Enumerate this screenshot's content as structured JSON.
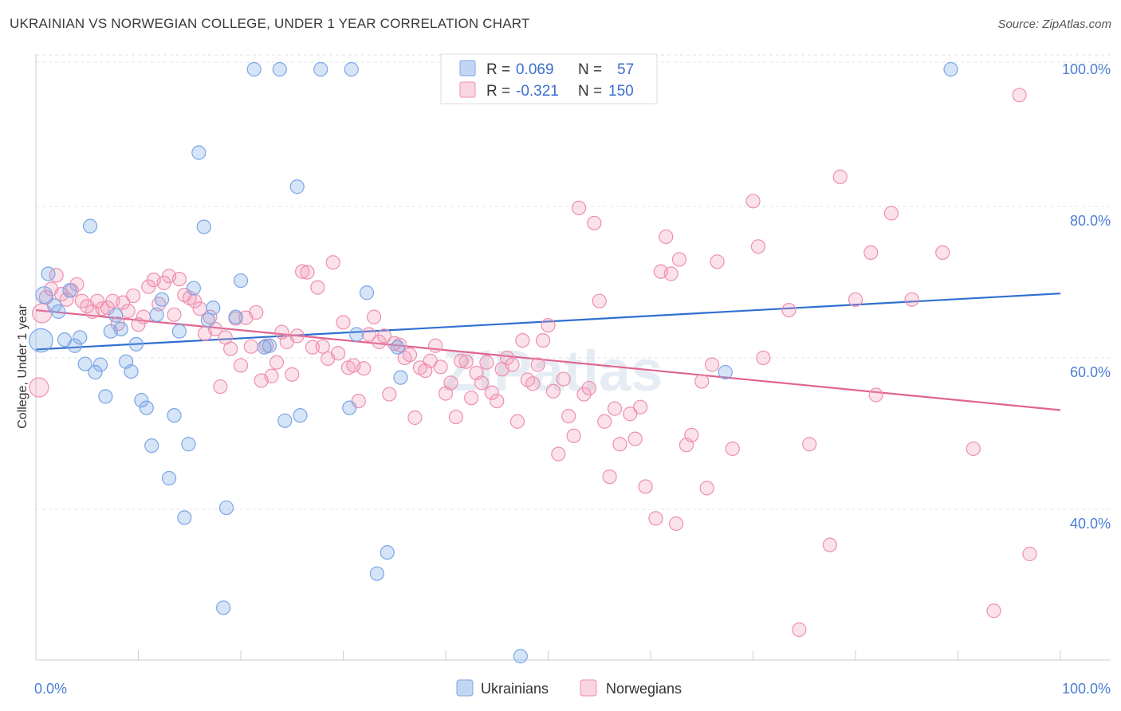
{
  "header": {
    "title": "UKRAINIAN VS NORWEGIAN COLLEGE, UNDER 1 YEAR CORRELATION CHART",
    "source": "Source: ZipAtlas.com"
  },
  "watermark": "ZIPatlas",
  "colors": {
    "ukrainians": "#7aa6e6",
    "ukrainians_fill": "rgba(120,165,230,0.30)",
    "ukrainians_line": "#2f6fd0",
    "norwegians": "#ee8fae",
    "norwegians_fill": "rgba(240,150,180,0.28)",
    "norwegians_line": "#e0648f",
    "tick": "#4a7fd4",
    "grid": "#dde3ea"
  },
  "legend_top": {
    "rows": [
      {
        "r_label": "R =",
        "r_value": "0.069",
        "n_label": "N =",
        "n_value": "57"
      },
      {
        "r_label": "R =",
        "r_value": "-0.321",
        "n_label": "N =",
        "n_value": "150"
      }
    ]
  },
  "legend_bottom": [
    "Ukrainians",
    "Norwegians"
  ],
  "chart_data": {
    "type": "scatter",
    "title": "UKRAINIAN VS NORWEGIAN COLLEGE, UNDER 1 YEAR CORRELATION CHART",
    "xlabel": "",
    "ylabel": "College, Under 1 year",
    "xlim": [
      0,
      100
    ],
    "ylim": [
      22,
      102
    ],
    "x_ticks": [
      "0.0%",
      "100.0%"
    ],
    "y_ticks": [
      {
        "value": 100,
        "label": "100.0%"
      },
      {
        "value": 80,
        "label": "80.0%"
      },
      {
        "value": 60,
        "label": "60.0%"
      },
      {
        "value": 40,
        "label": "40.0%"
      }
    ],
    "grid": true,
    "legend": "top-center",
    "series": [
      {
        "name": "Ukrainians",
        "trend": {
          "x": [
            0,
            100
          ],
          "y": [
            63.0,
            70.4
          ]
        },
        "points": [
          [
            0.5,
            64.2,
            3
          ],
          [
            0.8,
            70.2,
            1.5
          ],
          [
            1.2,
            73.0,
            1
          ],
          [
            1.8,
            68.8,
            1
          ],
          [
            2.2,
            68.0,
            1
          ],
          [
            2.8,
            64.3,
            1
          ],
          [
            3.3,
            70.8,
            1
          ],
          [
            3.8,
            63.5,
            1
          ],
          [
            4.3,
            64.6,
            1
          ],
          [
            4.8,
            61.1,
            1
          ],
          [
            5.3,
            79.3,
            1
          ],
          [
            5.8,
            60.0,
            1
          ],
          [
            6.3,
            61.0,
            1
          ],
          [
            6.8,
            56.8,
            1
          ],
          [
            7.3,
            65.4,
            1
          ],
          [
            7.8,
            67.5,
            1
          ],
          [
            8.3,
            65.7,
            1
          ],
          [
            8.8,
            61.4,
            1
          ],
          [
            9.3,
            60.1,
            1
          ],
          [
            9.8,
            63.7,
            1
          ],
          [
            10.3,
            56.3,
            1
          ],
          [
            10.8,
            55.3,
            1
          ],
          [
            11.3,
            50.3,
            1
          ],
          [
            11.8,
            67.6,
            1
          ],
          [
            12.3,
            69.6,
            1
          ],
          [
            13.0,
            46.0,
            1
          ],
          [
            13.5,
            54.3,
            1
          ],
          [
            14.0,
            65.4,
            1
          ],
          [
            14.5,
            40.8,
            1
          ],
          [
            14.9,
            50.5,
            1
          ],
          [
            15.4,
            71.1,
            1
          ],
          [
            15.9,
            89.0,
            1
          ],
          [
            16.4,
            79.2,
            1
          ],
          [
            16.8,
            66.9,
            1
          ],
          [
            17.3,
            68.5,
            1
          ],
          [
            18.3,
            28.9,
            1
          ],
          [
            18.6,
            42.1,
            1
          ],
          [
            19.5,
            67.3,
            1
          ],
          [
            20.0,
            72.1,
            1
          ],
          [
            21.3,
            100.0,
            1
          ],
          [
            22.3,
            63.3,
            1
          ],
          [
            22.8,
            63.5,
            1
          ],
          [
            23.8,
            100.0,
            1
          ],
          [
            24.3,
            53.6,
            1
          ],
          [
            25.5,
            84.5,
            1
          ],
          [
            25.8,
            54.3,
            1
          ],
          [
            27.8,
            100.0,
            1
          ],
          [
            30.8,
            100.0,
            1
          ],
          [
            30.6,
            55.3,
            1
          ],
          [
            31.3,
            65.0,
            1
          ],
          [
            32.3,
            70.5,
            1
          ],
          [
            33.3,
            33.4,
            1
          ],
          [
            34.3,
            36.2,
            1
          ],
          [
            35.3,
            63.3,
            1
          ],
          [
            35.6,
            59.3,
            1
          ],
          [
            47.3,
            22.5,
            1
          ],
          [
            67.3,
            60.0,
            1
          ],
          [
            89.3,
            100.0,
            1
          ]
        ]
      },
      {
        "name": "Norwegians",
        "trend": {
          "x": [
            0,
            100
          ],
          "y": [
            68.2,
            55.0
          ]
        },
        "points": [
          [
            0.3,
            58.0,
            2
          ],
          [
            0.6,
            67.8,
            2
          ],
          [
            1.0,
            69.9,
            1
          ],
          [
            1.5,
            71.0,
            1
          ],
          [
            2.0,
            72.8,
            1
          ],
          [
            2.5,
            70.3,
            1
          ],
          [
            3.0,
            69.6,
            1
          ],
          [
            3.5,
            70.8,
            1
          ],
          [
            4.0,
            71.6,
            1
          ],
          [
            4.5,
            69.4,
            1
          ],
          [
            5.0,
            68.7,
            1
          ],
          [
            5.5,
            68.0,
            1
          ],
          [
            6.0,
            69.4,
            1
          ],
          [
            6.5,
            68.4,
            1
          ],
          [
            7.0,
            68.5,
            1
          ],
          [
            7.5,
            69.4,
            1
          ],
          [
            8.0,
            66.4,
            1
          ],
          [
            8.5,
            69.2,
            1
          ],
          [
            9.0,
            68.1,
            1
          ],
          [
            9.5,
            70.1,
            1
          ],
          [
            10.0,
            66.3,
            1
          ],
          [
            10.5,
            67.3,
            1
          ],
          [
            11.0,
            71.3,
            1
          ],
          [
            11.5,
            72.2,
            1
          ],
          [
            12.0,
            69.0,
            1
          ],
          [
            12.5,
            71.8,
            1
          ],
          [
            13.0,
            72.7,
            1
          ],
          [
            13.5,
            67.6,
            1
          ],
          [
            14.0,
            72.3,
            1
          ],
          [
            14.5,
            70.2,
            1
          ],
          [
            15.0,
            69.8,
            1
          ],
          [
            15.5,
            69.4,
            1
          ],
          [
            16.0,
            68.4,
            1
          ],
          [
            16.5,
            65.1,
            1
          ],
          [
            17.0,
            67.3,
            1
          ],
          [
            17.5,
            65.7,
            1
          ],
          [
            18.0,
            58.1,
            1
          ],
          [
            18.5,
            64.6,
            1
          ],
          [
            19.0,
            63.1,
            1
          ],
          [
            19.5,
            67.1,
            1
          ],
          [
            20.0,
            60.9,
            1
          ],
          [
            20.5,
            67.2,
            1
          ],
          [
            21.0,
            63.4,
            1
          ],
          [
            21.5,
            67.9,
            1
          ],
          [
            22.0,
            58.9,
            1
          ],
          [
            22.5,
            63.5,
            1
          ],
          [
            23.0,
            59.5,
            1
          ],
          [
            23.5,
            61.3,
            1
          ],
          [
            24.0,
            65.3,
            1
          ],
          [
            24.5,
            64.0,
            1
          ],
          [
            25.0,
            59.7,
            1
          ],
          [
            25.5,
            64.8,
            1
          ],
          [
            26.0,
            73.3,
            1
          ],
          [
            26.5,
            73.2,
            1
          ],
          [
            27.0,
            63.3,
            1
          ],
          [
            27.5,
            71.2,
            1
          ],
          [
            28.0,
            63.4,
            1
          ],
          [
            28.5,
            61.8,
            1
          ],
          [
            29.0,
            74.5,
            1
          ],
          [
            29.5,
            62.5,
            1
          ],
          [
            30.0,
            66.6,
            1
          ],
          [
            30.5,
            60.6,
            1
          ],
          [
            31.0,
            60.9,
            1
          ],
          [
            31.5,
            56.2,
            1
          ],
          [
            32.0,
            60.5,
            1
          ],
          [
            32.5,
            65.0,
            1
          ],
          [
            33.0,
            67.3,
            1
          ],
          [
            33.5,
            64.0,
            1
          ],
          [
            34.0,
            64.8,
            1
          ],
          [
            34.5,
            57.1,
            1
          ],
          [
            35.0,
            63.8,
            1
          ],
          [
            35.5,
            63.6,
            1
          ],
          [
            36.0,
            61.9,
            1
          ],
          [
            36.5,
            62.3,
            1
          ],
          [
            37.0,
            54.0,
            1
          ],
          [
            37.5,
            60.6,
            1
          ],
          [
            38.0,
            60.2,
            1
          ],
          [
            38.5,
            61.5,
            1
          ],
          [
            39.0,
            63.5,
            1
          ],
          [
            39.5,
            60.7,
            1
          ],
          [
            40.0,
            57.2,
            1
          ],
          [
            40.5,
            58.6,
            1
          ],
          [
            41.0,
            54.1,
            1
          ],
          [
            41.5,
            61.5,
            1
          ],
          [
            42.0,
            61.4,
            1
          ],
          [
            42.5,
            56.6,
            1
          ],
          [
            43.0,
            59.9,
            1
          ],
          [
            43.5,
            58.6,
            1
          ],
          [
            44.0,
            61.3,
            1
          ],
          [
            44.5,
            57.3,
            1
          ],
          [
            45.0,
            56.2,
            1
          ],
          [
            45.5,
            60.4,
            1
          ],
          [
            46.0,
            61.9,
            1
          ],
          [
            46.5,
            61.0,
            1
          ],
          [
            47.0,
            53.5,
            1
          ],
          [
            47.5,
            64.2,
            1
          ],
          [
            48.0,
            59.0,
            1
          ],
          [
            48.5,
            58.5,
            1
          ],
          [
            49.0,
            61.0,
            1
          ],
          [
            49.5,
            64.2,
            1
          ],
          [
            50.0,
            66.2,
            1
          ],
          [
            50.5,
            57.5,
            1
          ],
          [
            51.0,
            49.2,
            1
          ],
          [
            51.5,
            59.1,
            1
          ],
          [
            52.0,
            54.2,
            1
          ],
          [
            52.5,
            51.6,
            1
          ],
          [
            53.0,
            81.7,
            1
          ],
          [
            53.5,
            57.1,
            1
          ],
          [
            54.0,
            57.9,
            1
          ],
          [
            54.5,
            79.7,
            1
          ],
          [
            55.0,
            69.4,
            1
          ],
          [
            55.5,
            53.5,
            1
          ],
          [
            56.0,
            46.2,
            1
          ],
          [
            56.5,
            55.2,
            1
          ],
          [
            57.0,
            50.5,
            1
          ],
          [
            58.0,
            54.5,
            1
          ],
          [
            58.5,
            51.2,
            1
          ],
          [
            59.0,
            55.4,
            1
          ],
          [
            59.5,
            44.9,
            1
          ],
          [
            60.5,
            40.7,
            1
          ],
          [
            61.0,
            73.3,
            1
          ],
          [
            61.5,
            77.9,
            1
          ],
          [
            62.0,
            73.0,
            1
          ],
          [
            62.5,
            40.0,
            1
          ],
          [
            62.8,
            74.9,
            1
          ],
          [
            63.5,
            50.4,
            1
          ],
          [
            64.0,
            51.7,
            1
          ],
          [
            65.0,
            58.8,
            1
          ],
          [
            65.5,
            44.7,
            1
          ],
          [
            66.0,
            61.0,
            1
          ],
          [
            66.5,
            74.6,
            1
          ],
          [
            68.0,
            49.9,
            1
          ],
          [
            70.0,
            82.6,
            1
          ],
          [
            70.5,
            76.6,
            1
          ],
          [
            71.0,
            61.9,
            1
          ],
          [
            73.5,
            68.2,
            1
          ],
          [
            74.5,
            26.0,
            1
          ],
          [
            75.5,
            50.5,
            1
          ],
          [
            77.5,
            37.2,
            1
          ],
          [
            78.5,
            85.8,
            1
          ],
          [
            80.0,
            69.6,
            1
          ],
          [
            81.5,
            75.8,
            1
          ],
          [
            82.0,
            57.0,
            1
          ],
          [
            83.5,
            81.0,
            1
          ],
          [
            85.5,
            69.6,
            1
          ],
          [
            88.5,
            75.8,
            1
          ],
          [
            91.5,
            49.9,
            1
          ],
          [
            93.5,
            28.5,
            1
          ],
          [
            96.0,
            96.6,
            1
          ],
          [
            97.0,
            36.0,
            1
          ]
        ]
      }
    ]
  }
}
